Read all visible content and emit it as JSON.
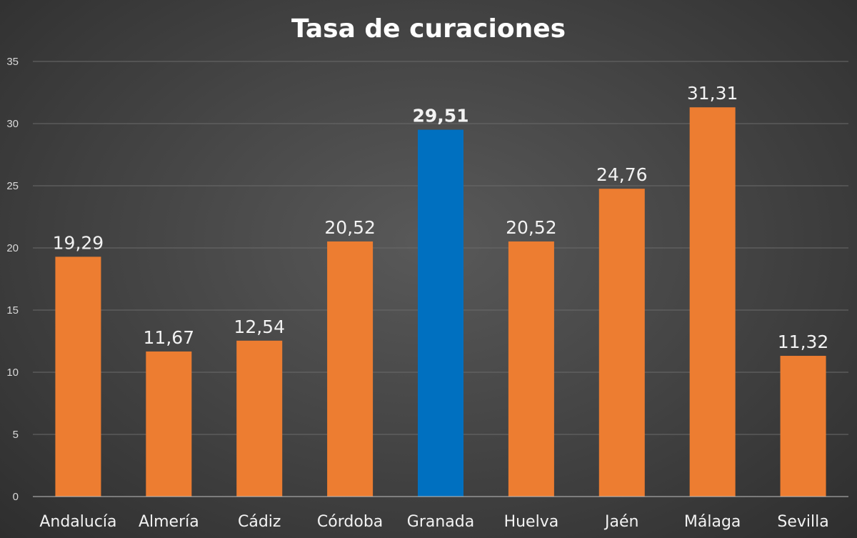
{
  "chart_data": {
    "type": "bar",
    "title": "Tasa de curaciones",
    "categories": [
      "Andalucía",
      "Almería",
      "Cádiz",
      "Córdoba",
      "Granada",
      "Huelva",
      "Jaén",
      "Málaga",
      "Sevilla"
    ],
    "values": [
      19.29,
      11.67,
      12.54,
      20.52,
      29.51,
      20.52,
      24.76,
      31.31,
      11.32
    ],
    "data_labels": [
      "19,29",
      "11,67",
      "12,54",
      "20,52",
      "29,51",
      "20,52",
      "24,76",
      "31,31",
      "11,32"
    ],
    "y_ticks": [
      "0",
      "5",
      "10",
      "15",
      "20",
      "25",
      "30",
      "35"
    ],
    "ylim": [
      0,
      35
    ],
    "grid": true,
    "legend": "none",
    "highlight_index": 4,
    "colors": {
      "bar": "#ED7D31",
      "highlight": "#0070C0"
    }
  }
}
